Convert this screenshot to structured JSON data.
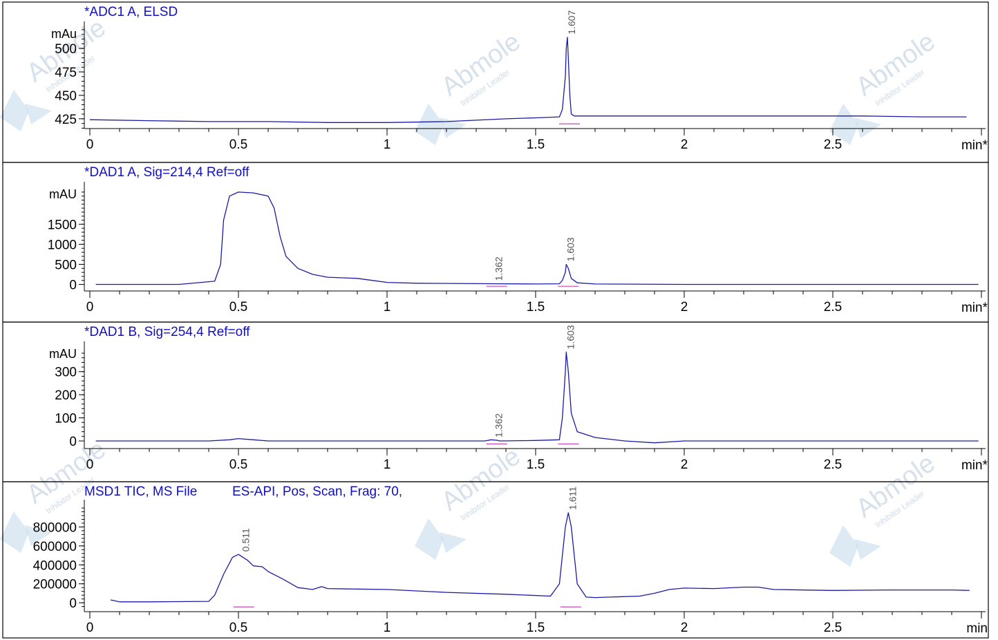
{
  "watermark": {
    "brand": "Abmole",
    "tagline": "Inhibitor Leader"
  },
  "chart_data": [
    {
      "type": "line",
      "title": "*ADC1 A, ELSD",
      "x_unit": "min*",
      "y_unit": "mAu",
      "xlim": [
        0,
        3.0
      ],
      "xticks": [
        0,
        0.5,
        1,
        1.5,
        2,
        2.5
      ],
      "xtick_labels": [
        "0",
        "0.5",
        "1",
        "1.5",
        "2",
        "2.5"
      ],
      "ylim": [
        419,
        520
      ],
      "yticks": [
        425,
        450,
        475,
        500
      ],
      "ytick_labels": [
        "425",
        "450",
        "475",
        "500"
      ],
      "peaks": [
        {
          "rt": 1.607,
          "label": "1.607"
        }
      ],
      "series": [
        {
          "color": "#1a1aa8",
          "x": [
            0.0,
            0.2,
            0.4,
            0.6,
            0.8,
            1.0,
            1.2,
            1.4,
            1.5,
            1.58,
            1.59,
            1.6,
            1.603,
            1.607,
            1.61,
            1.615,
            1.62,
            1.63,
            1.65,
            1.8,
            2.0,
            2.2,
            2.4,
            2.6,
            2.8,
            2.95
          ],
          "y": [
            424,
            423,
            422,
            422,
            421,
            421,
            422,
            425,
            426,
            427,
            435,
            470,
            500,
            512,
            490,
            450,
            430,
            428,
            428,
            428,
            428,
            428,
            428,
            428,
            427,
            427
          ]
        }
      ]
    },
    {
      "type": "line",
      "title": "*DAD1 A, Sig=214,4 Ref=off",
      "x_unit": "min*",
      "y_unit": "mAU",
      "xlim": [
        0,
        3.0
      ],
      "xticks": [
        0,
        0.5,
        1,
        1.5,
        2,
        2.5
      ],
      "xtick_labels": [
        "0",
        "0.5",
        "1",
        "1.5",
        "2",
        "2.5"
      ],
      "ylim": [
        -60,
        2350
      ],
      "yticks": [
        0,
        500,
        1000,
        1500
      ],
      "ytick_labels": [
        "0",
        "500",
        "1000",
        "1500"
      ],
      "peaks": [
        {
          "rt": 1.362,
          "label": "1.362"
        },
        {
          "rt": 1.603,
          "label": "1.603"
        }
      ],
      "series": [
        {
          "color": "#1a1aa8",
          "x": [
            0.02,
            0.3,
            0.42,
            0.44,
            0.45,
            0.47,
            0.5,
            0.55,
            0.6,
            0.62,
            0.64,
            0.66,
            0.7,
            0.75,
            0.8,
            0.9,
            0.95,
            1.0,
            1.1,
            1.3,
            1.5,
            1.58,
            1.59,
            1.6,
            1.603,
            1.61,
            1.62,
            1.64,
            1.7,
            2.0,
            2.5,
            2.99
          ],
          "y": [
            0,
            0,
            80,
            500,
            1600,
            2200,
            2300,
            2280,
            2200,
            1900,
            1200,
            700,
            400,
            250,
            180,
            150,
            100,
            50,
            30,
            20,
            10,
            15,
            100,
            300,
            500,
            400,
            150,
            40,
            10,
            0,
            0,
            0
          ]
        }
      ]
    },
    {
      "type": "line",
      "title": "*DAD1 B, Sig=254,4 Ref=off",
      "x_unit": "min*",
      "y_unit": "mAU",
      "xlim": [
        0,
        3.0
      ],
      "xticks": [
        0,
        0.5,
        1,
        1.5,
        2,
        2.5
      ],
      "xtick_labels": [
        "0",
        "0.5",
        "1",
        "1.5",
        "2",
        "2.5"
      ],
      "ylim": [
        -15,
        395
      ],
      "yticks": [
        0,
        100,
        200,
        300
      ],
      "ytick_labels": [
        "0",
        "100",
        "200",
        "300"
      ],
      "peaks": [
        {
          "rt": 1.362,
          "label": "1.362"
        },
        {
          "rt": 1.603,
          "label": "1.603"
        }
      ],
      "series": [
        {
          "color": "#1a1aa8",
          "x": [
            0.02,
            0.4,
            0.47,
            0.5,
            0.55,
            0.6,
            1.0,
            1.33,
            1.35,
            1.37,
            1.38,
            1.5,
            1.58,
            1.59,
            1.6,
            1.603,
            1.61,
            1.62,
            1.64,
            1.7,
            1.8,
            1.9,
            2.0,
            2.5,
            2.99
          ],
          "y": [
            0,
            0,
            5,
            10,
            5,
            0,
            0,
            0,
            5,
            3,
            0,
            2,
            5,
            100,
            300,
            385,
            300,
            120,
            40,
            15,
            0,
            -8,
            0,
            0,
            0
          ]
        }
      ]
    },
    {
      "type": "line",
      "title": "MSD1 TIC, MS File",
      "subtitle": "ES-API, Pos, Scan, Frag: 70,",
      "x_unit": "min",
      "y_unit": "",
      "xlim": [
        0,
        3.0
      ],
      "xticks": [
        0,
        0.5,
        1,
        1.5,
        2,
        2.5
      ],
      "xtick_labels": [
        "0",
        "0.5",
        "1",
        "1.5",
        "2",
        "2.5"
      ],
      "ylim": [
        -50000,
        1000000
      ],
      "yticks": [
        0,
        200000,
        400000,
        600000,
        800000
      ],
      "ytick_labels": [
        "0",
        "200000",
        "400000",
        "600000",
        "800000"
      ],
      "peaks": [
        {
          "rt": 0.511,
          "label": "0.511"
        },
        {
          "rt": 1.611,
          "label": "1.611"
        }
      ],
      "series": [
        {
          "color": "#1a1aa8",
          "x": [
            0.07,
            0.1,
            0.2,
            0.4,
            0.42,
            0.45,
            0.48,
            0.5,
            0.53,
            0.55,
            0.58,
            0.6,
            0.65,
            0.7,
            0.75,
            0.78,
            0.8,
            0.9,
            1.0,
            1.2,
            1.4,
            1.55,
            1.58,
            1.6,
            1.61,
            1.62,
            1.64,
            1.67,
            1.7,
            1.85,
            1.9,
            1.95,
            2.0,
            2.1,
            2.2,
            2.25,
            2.3,
            2.5,
            2.7,
            2.9,
            2.96
          ],
          "y": [
            30000,
            10000,
            10000,
            15000,
            80000,
            300000,
            480000,
            510000,
            450000,
            390000,
            380000,
            330000,
            250000,
            160000,
            140000,
            170000,
            150000,
            145000,
            140000,
            110000,
            90000,
            70000,
            200000,
            800000,
            950000,
            800000,
            200000,
            60000,
            55000,
            70000,
            100000,
            140000,
            155000,
            150000,
            165000,
            165000,
            140000,
            130000,
            135000,
            135000,
            130000
          ]
        }
      ]
    }
  ]
}
